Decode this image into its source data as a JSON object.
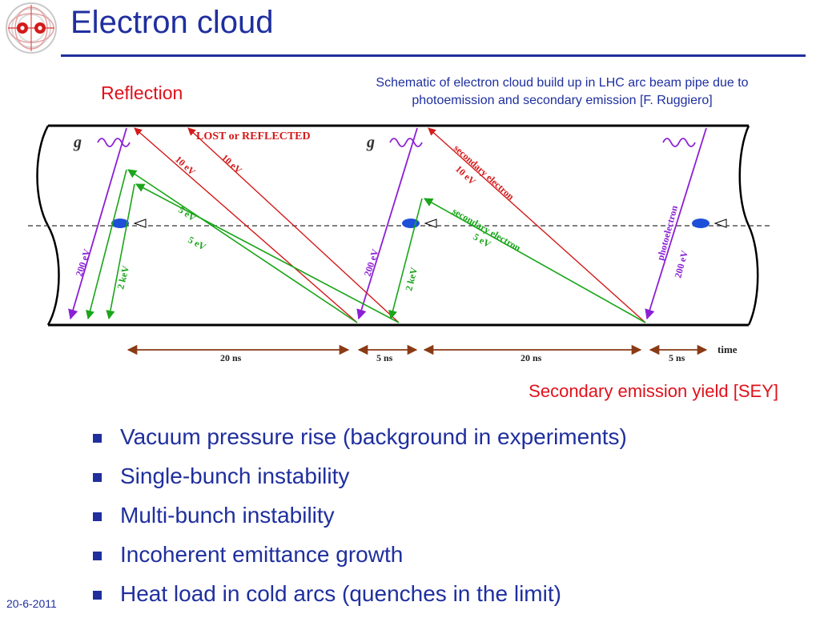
{
  "slide": {
    "title": "Electron cloud",
    "date": "20-6-2011",
    "logo_icon": "lhc-dipole-logo-icon"
  },
  "labels": {
    "reflection": "Reflection",
    "caption_line1": "Schematic of electron cloud build up in LHC arc beam pipe due to",
    "caption_line2": "photoemission and secondary emission [F. Ruggiero]",
    "sey": "Secondary emission yield [SEY]"
  },
  "diagram": {
    "photon_symbol": "g",
    "lost_label": "LOST or REFLECTED",
    "energies": {
      "e200a": "200 eV",
      "e2kev_a": "2 keV",
      "e10a": "10 eV",
      "e10b": "10 eV",
      "e5a": "5 eV",
      "e5b": "5 eV",
      "e200b": "200 eV",
      "e2kev_b": "2 keV",
      "secondary1": "secondary electron",
      "e10c": "10 eV",
      "secondary2": "secondary electron",
      "e5c": "5 eV",
      "photoelectron": "photoelectron",
      "e200c": "200 eV"
    },
    "timeline": {
      "t1": "20 ns",
      "t2": "5 ns",
      "t3": "20 ns",
      "t4": "5 ns",
      "axis": "time"
    },
    "colors": {
      "photon": "#8b1fd6",
      "red": "#d41a1a",
      "green": "#1aa51a",
      "bunch": "#1e4fd8",
      "timeline": "#8a3a14"
    }
  },
  "bullets": [
    "Vacuum pressure rise  (background in experiments)",
    "Single-bunch instability",
    "Multi-bunch instability",
    "Incoherent emittance growth",
    "Heat load in cold arcs (quenches in the limit)"
  ]
}
